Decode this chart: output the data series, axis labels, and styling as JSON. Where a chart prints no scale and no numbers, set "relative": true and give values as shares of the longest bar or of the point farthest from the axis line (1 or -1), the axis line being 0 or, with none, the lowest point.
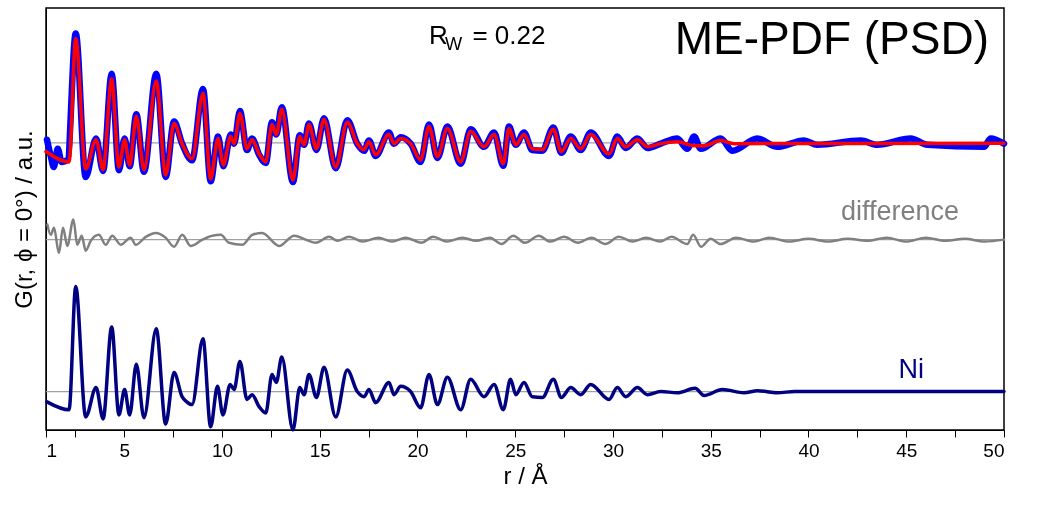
{
  "chart_data": {
    "type": "line",
    "relative": true,
    "xlabel": "r / Å",
    "ylabel": "G(r, ϕ = 0°) / a.u.",
    "xlim": [
      1,
      50
    ],
    "xticks": [
      1,
      {
        "value": 2.5,
        "label": null
      },
      5,
      {
        "value": 7.5,
        "label": null
      },
      10,
      {
        "value": 12.5,
        "label": null
      },
      15,
      {
        "value": 17.5,
        "label": null
      },
      20,
      {
        "value": 22.5,
        "label": null
      },
      25,
      {
        "value": 27.5,
        "label": null
      },
      30,
      {
        "value": 32.5,
        "label": null
      },
      35,
      {
        "value": 37.5,
        "label": null
      },
      40,
      {
        "value": 42.5,
        "label": null
      },
      45,
      {
        "value": 47.5,
        "label": null
      },
      50
    ],
    "annotations": [
      "R$_{W}$ = 0.22",
      "ME-PDF (PSD)"
    ],
    "ref_lines": [
      {
        "axis": "y",
        "value": 0.724,
        "color": "#a0a0a0"
      },
      {
        "axis": "y",
        "value": 0.48,
        "color": "#a0a0a0"
      },
      {
        "axis": "y",
        "value": 0.097,
        "color": "#a0a0a0"
      }
    ],
    "series": [
      {
        "color": "#0000ff",
        "x": [
          1.05,
          1.25,
          1.4,
          1.6,
          1.8,
          2.1,
          2.52,
          3.03,
          3.56,
          3.92,
          4.36,
          4.73,
          5.02,
          5.28,
          5.62,
          6.01,
          6.64,
          7.12,
          7.55,
          7.96,
          8.47,
          9.03,
          9.42,
          9.8,
          10.07,
          10.45,
          10.62,
          10.92,
          11.28,
          11.54,
          11.9,
          12.24,
          12.56,
          12.78,
          13.06,
          13.63,
          13.98,
          14.2,
          14.45,
          14.83,
          15.22,
          15.82,
          16.41,
          16.92,
          17.27,
          17.52,
          17.86,
          18.54,
          18.8,
          19.14,
          19.65,
          20.16,
          20.59,
          21.02,
          21.53,
          22.21,
          22.72,
          23.4,
          23.92,
          24.39,
          24.68,
          25.03,
          25.45,
          25.87,
          26.39,
          26.95,
          27.36,
          27.84,
          28.35,
          28.86,
          29.8,
          30.22,
          30.65,
          31.25,
          31.76,
          32.44,
          33.29,
          33.8,
          34.15,
          34.49,
          35.51,
          36.11,
          37.38,
          38.41,
          39.77,
          40.45,
          42.67,
          43.52,
          45.23,
          46.08,
          48.98,
          49.32,
          50
        ],
        "values": [
          0.732,
          0.689,
          0.663,
          0.709,
          0.676,
          0.681,
          1.0,
          0.638,
          0.735,
          0.653,
          0.898,
          0.655,
          0.735,
          0.665,
          0.796,
          0.651,
          0.898,
          0.638,
          0.778,
          0.722,
          0.68,
          0.86,
          0.627,
          0.74,
          0.665,
          0.745,
          0.722,
          0.804,
          0.706,
          0.735,
          0.694,
          0.673,
          0.776,
          0.745,
          0.814,
          0.625,
          0.743,
          0.719,
          0.773,
          0.706,
          0.786,
          0.66,
          0.781,
          0.722,
          0.704,
          0.73,
          0.691,
          0.75,
          0.722,
          0.738,
          0.722,
          0.676,
          0.77,
          0.686,
          0.765,
          0.671,
          0.758,
          0.714,
          0.75,
          0.666,
          0.765,
          0.719,
          0.75,
          0.706,
          0.704,
          0.763,
          0.699,
          0.74,
          0.706,
          0.75,
          0.691,
          0.74,
          0.711,
          0.735,
          0.711,
          0.722,
          0.735,
          0.709,
          0.74,
          0.709,
          0.735,
          0.704,
          0.735,
          0.714,
          0.73,
          0.719,
          0.73,
          0.719,
          0.735,
          0.719,
          0.714,
          0.735,
          0.722
        ]
      },
      {
        "color": "#ff0000",
        "x": [
          1.0,
          2.18,
          2.52,
          3.03,
          3.56,
          3.92,
          4.36,
          4.73,
          5.02,
          5.28,
          5.62,
          6.01,
          6.64,
          7.12,
          7.55,
          7.96,
          8.47,
          9.03,
          9.42,
          9.8,
          10.07,
          10.45,
          10.62,
          10.92,
          11.28,
          11.54,
          11.9,
          12.24,
          12.56,
          12.78,
          13.06,
          13.63,
          13.98,
          14.2,
          14.45,
          14.83,
          15.22,
          15.82,
          16.41,
          16.92,
          17.27,
          17.52,
          17.86,
          18.54,
          18.8,
          19.14,
          19.65,
          20.16,
          20.59,
          21.02,
          21.53,
          22.21,
          22.72,
          23.4,
          23.92,
          24.39,
          24.68,
          25.03,
          25.45,
          25.87,
          26.39,
          26.95,
          27.36,
          27.84,
          28.35,
          28.86,
          29.8,
          30.22,
          30.65,
          31.25,
          31.76,
          32.44,
          33.3,
          34.15,
          34.66,
          35.51,
          36.2,
          50
        ],
        "values": [
          0.702,
          0.676,
          0.987,
          0.658,
          0.732,
          0.656,
          0.885,
          0.663,
          0.732,
          0.668,
          0.791,
          0.656,
          0.88,
          0.643,
          0.773,
          0.722,
          0.684,
          0.849,
          0.633,
          0.735,
          0.668,
          0.74,
          0.722,
          0.798,
          0.709,
          0.732,
          0.696,
          0.676,
          0.77,
          0.745,
          0.809,
          0.63,
          0.74,
          0.719,
          0.77,
          0.709,
          0.783,
          0.663,
          0.776,
          0.722,
          0.707,
          0.727,
          0.694,
          0.745,
          0.722,
          0.735,
          0.722,
          0.681,
          0.765,
          0.689,
          0.76,
          0.676,
          0.753,
          0.714,
          0.745,
          0.671,
          0.76,
          0.719,
          0.745,
          0.709,
          0.707,
          0.758,
          0.702,
          0.735,
          0.709,
          0.745,
          0.696,
          0.735,
          0.714,
          0.732,
          0.714,
          0.722,
          0.727,
          0.717,
          0.717,
          0.73,
          0.722,
          0.723
        ]
      },
      {
        "name": "difference",
        "color": "#808080",
        "x": [
          1.07,
          1.24,
          1.41,
          1.66,
          1.87,
          2.09,
          2.4,
          2.6,
          2.83,
          3.03,
          3.29,
          3.71,
          4.05,
          4.39,
          4.82,
          5.33,
          5.59,
          6.1,
          6.61,
          7.12,
          7.55,
          7.97,
          8.4,
          9.0,
          9.51,
          9.94,
          10.36,
          11.04,
          11.55,
          12.06,
          12.92,
          13.69,
          14.28,
          14.8,
          15.48,
          15.9,
          16.5,
          17.2,
          18.0,
          18.7,
          19.4,
          20.2,
          20.8,
          21.5,
          22.3,
          23.0,
          23.7,
          24.3,
          24.9,
          25.5,
          26.2,
          26.8,
          27.5,
          28.2,
          28.9,
          29.6,
          30.3,
          31.0,
          31.7,
          32.4,
          33.0,
          33.8,
          34.1,
          34.5,
          35.0,
          35.5,
          36.3,
          37.2,
          38.0,
          39.0,
          40.0,
          41.0,
          42.0,
          43.0,
          44.0,
          45.0,
          46.0,
          47.0,
          48.0,
          49.0,
          50
        ],
        "values": [
          0.518,
          0.492,
          0.51,
          0.446,
          0.51,
          0.464,
          0.531,
          0.467,
          0.49,
          0.452,
          0.477,
          0.492,
          0.467,
          0.49,
          0.467,
          0.485,
          0.467,
          0.487,
          0.497,
          0.485,
          0.462,
          0.492,
          0.464,
          0.48,
          0.49,
          0.492,
          0.472,
          0.467,
          0.492,
          0.497,
          0.464,
          0.49,
          0.48,
          0.472,
          0.487,
          0.477,
          0.487,
          0.475,
          0.485,
          0.475,
          0.485,
          0.472,
          0.487,
          0.475,
          0.485,
          0.477,
          0.485,
          0.469,
          0.49,
          0.472,
          0.49,
          0.475,
          0.487,
          0.472,
          0.485,
          0.469,
          0.487,
          0.475,
          0.485,
          0.475,
          0.487,
          0.469,
          0.492,
          0.462,
          0.482,
          0.469,
          0.485,
          0.475,
          0.485,
          0.475,
          0.482,
          0.475,
          0.482,
          0.477,
          0.485,
          0.475,
          0.485,
          0.477,
          0.482,
          0.475,
          0.48
        ]
      },
      {
        "name": "Ni",
        "color": "#000080",
        "x": [
          1.05,
          2.18,
          2.52,
          3.03,
          3.56,
          3.92,
          4.36,
          4.73,
          5.02,
          5.28,
          5.62,
          6.01,
          6.64,
          7.12,
          7.55,
          7.96,
          8.2,
          8.47,
          9.03,
          9.42,
          9.77,
          10.05,
          10.42,
          10.62,
          10.92,
          11.28,
          11.54,
          11.9,
          12.24,
          12.56,
          12.78,
          13.06,
          13.63,
          13.98,
          14.2,
          14.45,
          14.83,
          15.22,
          15.82,
          16.41,
          16.92,
          17.27,
          17.52,
          17.86,
          18.54,
          18.8,
          19.14,
          19.65,
          20.16,
          20.59,
          21.02,
          21.53,
          22.21,
          22.72,
          23.4,
          23.92,
          24.39,
          24.76,
          25.03,
          25.45,
          25.87,
          26.39,
          26.95,
          27.36,
          27.84,
          28.35,
          28.86,
          29.8,
          30.22,
          30.65,
          31.25,
          31.76,
          32.44,
          33.29,
          34.2,
          34.66,
          35.6,
          36.7,
          37.4,
          38.4,
          39.3,
          50
        ],
        "values": [
          0.071,
          0.051,
          0.362,
          0.033,
          0.107,
          0.028,
          0.26,
          0.038,
          0.102,
          0.038,
          0.166,
          0.031,
          0.255,
          0.015,
          0.145,
          0.084,
          0.071,
          0.064,
          0.23,
          0.008,
          0.11,
          0.038,
          0.115,
          0.102,
          0.173,
          0.077,
          0.089,
          0.059,
          0.043,
          0.14,
          0.12,
          0.184,
          0.0,
          0.107,
          0.089,
          0.14,
          0.082,
          0.158,
          0.033,
          0.151,
          0.097,
          0.084,
          0.102,
          0.069,
          0.12,
          0.089,
          0.11,
          0.097,
          0.056,
          0.14,
          0.064,
          0.133,
          0.051,
          0.128,
          0.084,
          0.115,
          0.051,
          0.128,
          0.089,
          0.12,
          0.084,
          0.082,
          0.128,
          0.082,
          0.107,
          0.089,
          0.115,
          0.077,
          0.107,
          0.084,
          0.107,
          0.089,
          0.097,
          0.094,
          0.105,
          0.087,
          0.102,
          0.094,
          0.099,
          0.094,
          0.097,
          0.097
        ]
      }
    ]
  }
}
